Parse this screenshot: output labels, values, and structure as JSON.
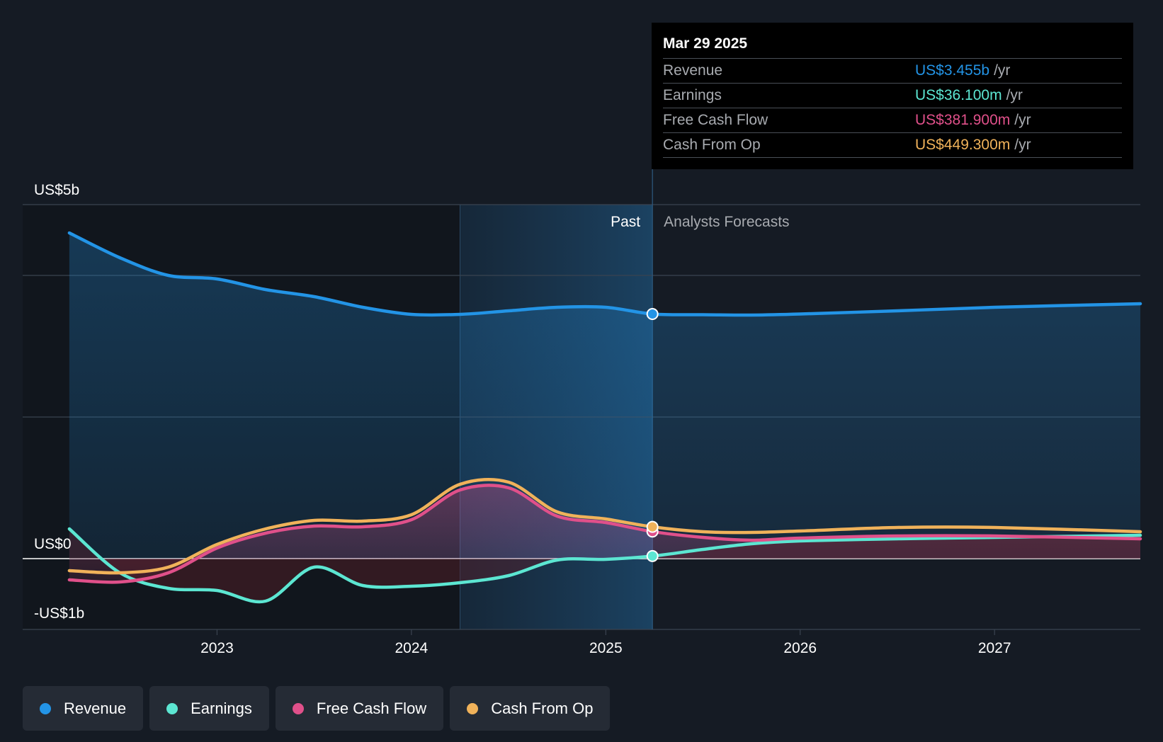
{
  "tooltip": {
    "date": "Mar 29 2025",
    "rows": [
      {
        "label": "Revenue",
        "value": "US$3.455b",
        "unit": "/yr",
        "color": "#2394e6"
      },
      {
        "label": "Earnings",
        "value": "US$36.100m",
        "unit": "/yr",
        "color": "#5ce6d2"
      },
      {
        "label": "Free Cash Flow",
        "value": "US$381.900m",
        "unit": "/yr",
        "color": "#e0508a"
      },
      {
        "label": "Cash From Op",
        "value": "US$449.300m",
        "unit": "/yr",
        "color": "#f0b25a"
      }
    ]
  },
  "legend": [
    {
      "label": "Revenue",
      "color": "#2394e6"
    },
    {
      "label": "Earnings",
      "color": "#5ce6d2"
    },
    {
      "label": "Free Cash Flow",
      "color": "#e0508a"
    },
    {
      "label": "Cash From Op",
      "color": "#f0b25a"
    }
  ],
  "chart_data": {
    "type": "line",
    "title": "",
    "xlabel": "",
    "ylabel": "",
    "x_ticks": [
      "2023",
      "2024",
      "2025",
      "2026",
      "2027"
    ],
    "x_tick_values": [
      2023,
      2024,
      2025,
      2026,
      2027
    ],
    "y_ticks": [
      {
        "value": 5,
        "label": "US$5b"
      },
      {
        "value": 0,
        "label": "US$0"
      },
      {
        "value": -1,
        "label": "-US$1b"
      }
    ],
    "ylim": [
      -1,
      5
    ],
    "xlim": [
      2022.0,
      2027.75
    ],
    "gridlines_at": [
      5,
      4,
      2
    ],
    "past_label": "Past",
    "forecast_label": "Analysts Forecasts",
    "divider_x": 2025.24,
    "highlight_start_x": 2024.25,
    "series": [
      {
        "name": "Revenue",
        "color": "#2394e6",
        "points": [
          [
            2022.24,
            4.6
          ],
          [
            2022.5,
            4.25
          ],
          [
            2022.75,
            4.0
          ],
          [
            2023.0,
            3.95
          ],
          [
            2023.25,
            3.8
          ],
          [
            2023.5,
            3.7
          ],
          [
            2023.75,
            3.55
          ],
          [
            2024.0,
            3.45
          ],
          [
            2024.25,
            3.45
          ],
          [
            2024.5,
            3.5
          ],
          [
            2024.75,
            3.55
          ],
          [
            2025.0,
            3.55
          ],
          [
            2025.24,
            3.455
          ],
          [
            2025.5,
            3.445
          ],
          [
            2025.75,
            3.44
          ],
          [
            2026.0,
            3.455
          ],
          [
            2026.5,
            3.5
          ],
          [
            2027.0,
            3.55
          ],
          [
            2027.75,
            3.6
          ]
        ]
      },
      {
        "name": "Earnings",
        "color": "#5ce6d2",
        "points": [
          [
            2022.24,
            0.42
          ],
          [
            2022.5,
            -0.2
          ],
          [
            2022.75,
            -0.42
          ],
          [
            2023.0,
            -0.45
          ],
          [
            2023.25,
            -0.6
          ],
          [
            2023.5,
            -0.12
          ],
          [
            2023.75,
            -0.38
          ],
          [
            2024.0,
            -0.39
          ],
          [
            2024.25,
            -0.34
          ],
          [
            2024.5,
            -0.24
          ],
          [
            2024.75,
            -0.02
          ],
          [
            2025.0,
            -0.01
          ],
          [
            2025.24,
            0.036
          ],
          [
            2025.5,
            0.13
          ],
          [
            2025.75,
            0.21
          ],
          [
            2026.0,
            0.25
          ],
          [
            2026.5,
            0.28
          ],
          [
            2027.0,
            0.3
          ],
          [
            2027.75,
            0.33
          ]
        ]
      },
      {
        "name": "Free Cash Flow",
        "color": "#e0508a",
        "points": [
          [
            2022.24,
            -0.3
          ],
          [
            2022.5,
            -0.33
          ],
          [
            2022.75,
            -0.2
          ],
          [
            2023.0,
            0.15
          ],
          [
            2023.25,
            0.36
          ],
          [
            2023.5,
            0.46
          ],
          [
            2023.75,
            0.45
          ],
          [
            2024.0,
            0.55
          ],
          [
            2024.25,
            0.97
          ],
          [
            2024.5,
            1.0
          ],
          [
            2024.75,
            0.6
          ],
          [
            2025.0,
            0.51
          ],
          [
            2025.24,
            0.382
          ],
          [
            2025.5,
            0.3
          ],
          [
            2025.75,
            0.26
          ],
          [
            2026.0,
            0.29
          ],
          [
            2026.5,
            0.32
          ],
          [
            2027.0,
            0.32
          ],
          [
            2027.75,
            0.28
          ]
        ]
      },
      {
        "name": "Cash From Op",
        "color": "#f0b25a",
        "points": [
          [
            2022.24,
            -0.17
          ],
          [
            2022.5,
            -0.2
          ],
          [
            2022.75,
            -0.12
          ],
          [
            2023.0,
            0.2
          ],
          [
            2023.25,
            0.42
          ],
          [
            2023.5,
            0.54
          ],
          [
            2023.75,
            0.53
          ],
          [
            2024.0,
            0.62
          ],
          [
            2024.25,
            1.05
          ],
          [
            2024.5,
            1.08
          ],
          [
            2024.75,
            0.66
          ],
          [
            2025.0,
            0.56
          ],
          [
            2025.24,
            0.449
          ],
          [
            2025.5,
            0.38
          ],
          [
            2025.75,
            0.37
          ],
          [
            2026.0,
            0.39
          ],
          [
            2026.5,
            0.44
          ],
          [
            2027.0,
            0.44
          ],
          [
            2027.75,
            0.38
          ]
        ]
      }
    ],
    "markers_at_x": 2025.24
  }
}
